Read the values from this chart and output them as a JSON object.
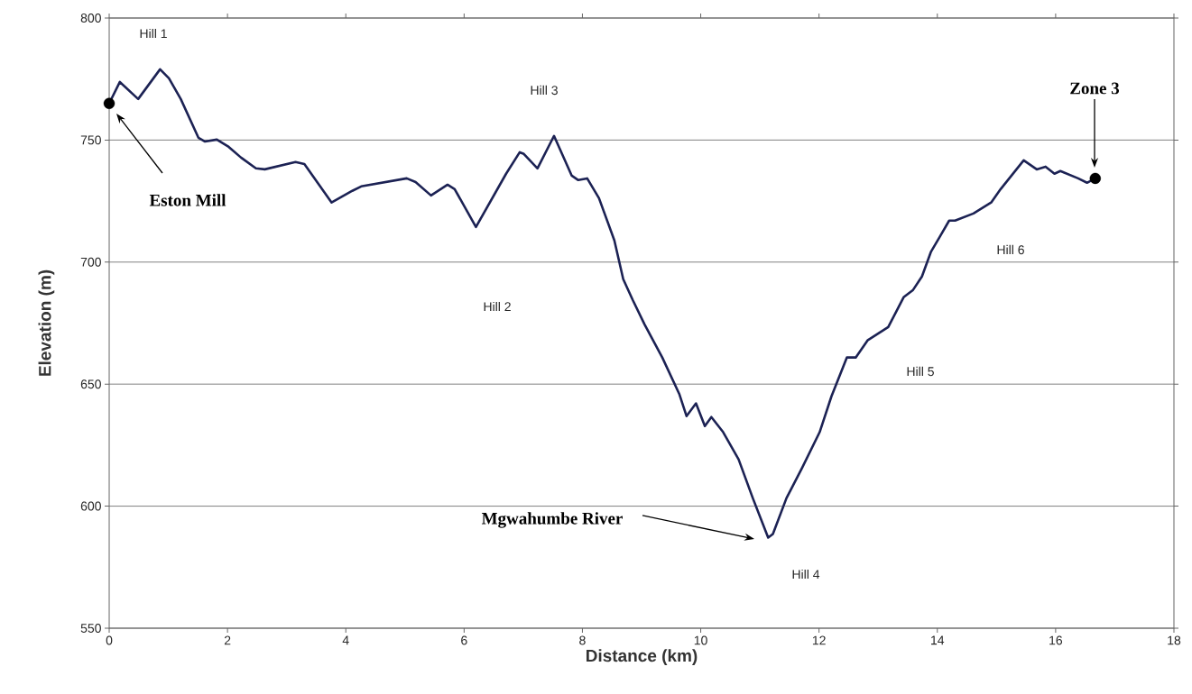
{
  "chart_data": {
    "type": "line",
    "xlabel": "Distance (km)",
    "ylabel": "Elevation (m)",
    "xlim": [
      0,
      18
    ],
    "xticks": [
      0,
      2,
      4,
      6,
      8,
      10,
      12,
      14,
      16,
      18
    ],
    "ylim": [
      550,
      800
    ],
    "yticks": [
      550,
      600,
      650,
      700,
      750,
      800
    ],
    "grid": "y",
    "series": [
      {
        "color": "#1c2254",
        "marker": "none",
        "x": [
          0,
          0.18,
          0.49,
          0.86,
          1.01,
          1.21,
          1.51,
          1.62,
          1.82,
          2.02,
          2.23,
          2.48,
          2.63,
          3.15,
          3.3,
          3.76,
          4.11,
          4.26,
          5.03,
          5.18,
          5.44,
          5.72,
          5.84,
          6.2,
          6.71,
          6.94,
          7.01,
          7.24,
          7.52,
          7.82,
          7.93,
          8.08,
          8.28,
          8.54,
          8.69,
          8.85,
          9.05,
          9.35,
          9.64,
          9.76,
          9.92,
          10.07,
          10.18,
          10.38,
          10.64,
          10.88,
          11.14,
          11.22,
          11.45,
          11.71,
          12.01,
          12.21,
          12.47,
          12.62,
          12.82,
          13.17,
          13.43,
          13.59,
          13.74,
          13.89,
          14.04,
          14.2,
          14.3,
          14.61,
          14.91,
          15.07,
          15.46,
          15.68,
          15.83,
          15.98,
          16.08,
          16.38,
          16.53,
          16.67
        ],
        "values": [
          765,
          773.8,
          766.8,
          779,
          775.3,
          766.8,
          750.9,
          749.4,
          750.2,
          747.2,
          742.8,
          738.4,
          738,
          741,
          740.2,
          724.4,
          729.2,
          731,
          734.3,
          732.8,
          727.3,
          731.7,
          729.9,
          714.4,
          736.2,
          745,
          744.3,
          738.4,
          751.7,
          735.4,
          733.6,
          734.3,
          726.2,
          708.9,
          693,
          684.5,
          674.5,
          660.9,
          645.8,
          636.9,
          642.1,
          632.8,
          636.5,
          630.3,
          619.2,
          603.3,
          587.1,
          588.6,
          603.3,
          615.5,
          630.3,
          645,
          660.9,
          660.9,
          667.9,
          673.4,
          685.6,
          688.6,
          694.1,
          704.1,
          710.3,
          717,
          717,
          719.9,
          724.4,
          729.9,
          741.7,
          738,
          739.1,
          736.2,
          737.3,
          734.3,
          732.5,
          734.3
        ]
      },
      {
        "type": "scatter",
        "color": "#000000",
        "marker": "circle",
        "x": [
          0,
          16.67
        ],
        "values": [
          765,
          734.3
        ]
      }
    ],
    "annotations": [
      "Hill 1",
      "Hill 2",
      "Hill 3",
      "Hill 4",
      "Hill 5",
      "Hill 6",
      "Eston Mill",
      "Mgwahumbe River",
      "Zone 3"
    ]
  }
}
